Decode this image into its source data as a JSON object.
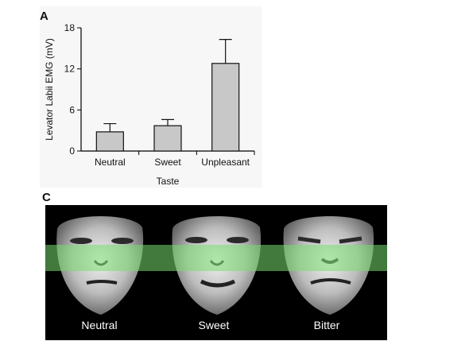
{
  "panels": {
    "a_letter": "A",
    "c_letter": "C"
  },
  "chart_data": {
    "type": "bar",
    "categories": [
      "Neutral",
      "Sweet",
      "Unpleasant"
    ],
    "values": [
      2.8,
      3.7,
      12.8
    ],
    "error_upper": [
      4.0,
      4.6,
      16.3
    ],
    "xlabel": "Taste",
    "ylabel": "Levator Labii EMG (mV)",
    "ylim": [
      0,
      18
    ],
    "yticks": [
      0,
      6,
      12,
      18
    ],
    "grid": false,
    "bar_color": "#c8c8c8"
  },
  "faces": {
    "labels": [
      "Neutral",
      "Sweet",
      "Bitter"
    ],
    "highlight_color": "#78dc6e"
  }
}
